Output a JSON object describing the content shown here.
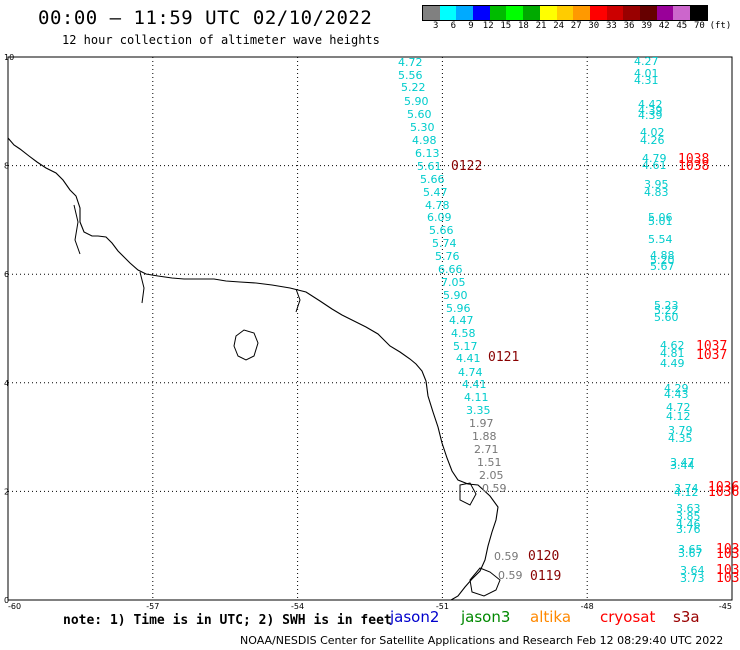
{
  "header": {
    "title": "00:00 – 11:59 UTC 02/10/2022",
    "subtitle": "12 hour collection of altimeter wave heights"
  },
  "colorbar": {
    "colors": [
      "#808080",
      "#00ffff",
      "#00aaff",
      "#0000ff",
      "#00bb00",
      "#00ff00",
      "#00aa00",
      "#ffff00",
      "#ffcc00",
      "#ff9900",
      "#ff0000",
      "#cc0000",
      "#990000",
      "#660000",
      "#990099",
      "#cc66cc",
      "#000000"
    ],
    "labels": [
      "3",
      "6",
      "9",
      "12",
      "15",
      "18",
      "21",
      "24",
      "27",
      "30",
      "33",
      "36",
      "39",
      "42",
      "45",
      "70",
      "(ft)"
    ]
  },
  "map": {
    "lon_range": [
      -60,
      -45
    ],
    "lat_range": [
      0,
      10
    ],
    "x_ticks": [
      "-60",
      "-57",
      "-54",
      "-51",
      "-48",
      "-45"
    ],
    "y_ticks": [
      "0",
      "2",
      "4",
      "6",
      "8",
      "10"
    ]
  },
  "track_left": {
    "color": "#00cccc",
    "values": [
      "4.72",
      "5.56",
      "5.22",
      "5.90",
      "5.60",
      "5.30",
      "4.98",
      "6.13",
      "5.61",
      "5.66",
      "5.47",
      "4.78",
      "6.09",
      "5.66",
      "5.74",
      "5.76",
      "6.66",
      "7.05",
      "5.90",
      "5.96",
      "4.47",
      "4.58",
      "5.17",
      "4.41",
      "4.74",
      "4.41",
      "4.11",
      "3.35"
    ]
  },
  "track_left_grey": {
    "color": "#777777",
    "values": [
      "1.97",
      "1.88",
      "2.71",
      "1.51",
      "2.05",
      "0.59"
    ]
  },
  "track_right": {
    "color": "#00cccc",
    "values": [
      "4.27",
      "4.01",
      "4.31",
      "4.42",
      "4.39",
      "4.39",
      "4.02",
      "4.26",
      "4.79",
      "4.61",
      "3.95",
      "4.83",
      "5.06",
      "5.01",
      "5.54",
      "4.88",
      "5.20",
      "5.67",
      "5.23",
      "5.22",
      "5.60",
      "4.62",
      "4.81",
      "4.49",
      "4.29",
      "4.43",
      "4.72",
      "4.12",
      "3.79",
      "4.35",
      "3.47",
      "3.44",
      "3.74",
      "4.12",
      "3.63",
      "3.85",
      "4.46",
      "3.76",
      "3.65",
      "3.67",
      "3.64",
      "3.73"
    ]
  },
  "buoys": [
    {
      "id": "0122",
      "color": "#880000"
    },
    {
      "id": "0121",
      "color": "#880000"
    },
    {
      "id": "0120",
      "color": "#880000"
    },
    {
      "id": "0119",
      "color": "#880000"
    },
    {
      "id": "1038",
      "color": "#ff0000"
    },
    {
      "id": "1038",
      "color": "#ff0000"
    },
    {
      "id": "1037",
      "color": "#ff0000"
    },
    {
      "id": "1037",
      "color": "#ff0000"
    },
    {
      "id": "1036",
      "color": "#ff0000"
    },
    {
      "id": "1036",
      "color": "#ff0000"
    },
    {
      "id": "103",
      "color": "#ff0000"
    },
    {
      "id": "103",
      "color": "#ff0000"
    },
    {
      "id": "103",
      "color": "#ff0000"
    },
    {
      "id": "103",
      "color": "#ff0000"
    }
  ],
  "buoy_near_grey": {
    "values": [
      "0.59",
      "0.59"
    ],
    "color": "#777777"
  },
  "footer": {
    "note": "note: 1) Time is in UTC; 2) SWH is in feet",
    "satellites": [
      {
        "name": "jason2",
        "color": "#0000cc"
      },
      {
        "name": "jason3",
        "color": "#008800"
      },
      {
        "name": "altika",
        "color": "#ff8800"
      },
      {
        "name": "cryosat",
        "color": "#ff0000"
      },
      {
        "name": "s3a",
        "color": "#990000"
      }
    ],
    "credit": "NOAA/NESDIS Center for Satellite Applications and Research   Feb 12 08:29:40 UTC 2022"
  }
}
